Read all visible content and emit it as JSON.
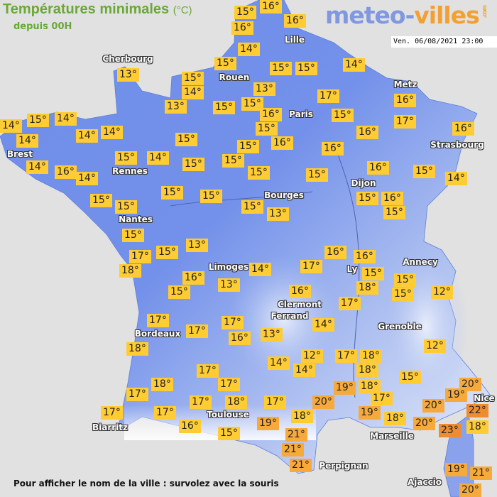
{
  "header": {
    "title": "Températures minimales",
    "unit": "(°C)",
    "subtitle": "depuis 00H",
    "datetime": "Ven. 06/08/2021 23:00"
  },
  "logo": {
    "part1": "meteo-",
    "part2": "villes",
    "suffix": ".com"
  },
  "colors": {
    "land_dark": "#6f8ee8",
    "land_light": "#dfe6f7",
    "sea": "#e1e1e1",
    "temp_mild": "#ffcc33",
    "temp_warm": "#f7aa3c",
    "temp_hot": "#f08c30",
    "title": "#6aa83a"
  },
  "cities": [
    "Lille",
    "Cherbourg",
    "Rouen",
    "Paris",
    "Metz",
    "Brest",
    "Rennes",
    "Strasbourg",
    "Dijon",
    "Bourges",
    "Nantes",
    "Limoges",
    "Annecy",
    "Ly",
    "Clermont",
    "Ferrand",
    "Bordeaux",
    "Grenoble",
    "Toulouse",
    "Biarritz",
    "Marseille",
    "Nice",
    "Perpignan",
    "Ajaccio"
  ],
  "temperatures": [
    "15°",
    "16°",
    "16°",
    "16°",
    "14°",
    "15°",
    "15°",
    "15°",
    "14°",
    "13°",
    "15°",
    "14°",
    "13°",
    "13°",
    "15°",
    "15°",
    "17°",
    "16°",
    "15°",
    "15°",
    "16°",
    "17°",
    "16°",
    "16°",
    "16°",
    "16°",
    "14°",
    "15°",
    "14°",
    "14°",
    "14°",
    "14°",
    "14°",
    "16°",
    "14°",
    "15°",
    "14°",
    "15°",
    "15°",
    "15°",
    "15°",
    "15°",
    "15°",
    "15°",
    "15°",
    "15°",
    "15°",
    "15°",
    "13°",
    "16°",
    "15°",
    "16°",
    "14°",
    "15°",
    "15°",
    "15°",
    "17°",
    "15°",
    "13°",
    "18°",
    "16°",
    "15°",
    "13°",
    "17°",
    "17°",
    "18°",
    "17°",
    "16°",
    "17°",
    "17°",
    "18°",
    "17°",
    "17°",
    "18°",
    "17°",
    "17°",
    "16°",
    "15°",
    "14°",
    "16°",
    "16°",
    "17°",
    "15°",
    "18°",
    "16°",
    "15°",
    "15°",
    "12°",
    "17°",
    "14°",
    "13°",
    "12°",
    "12°",
    "17°",
    "18°",
    "14°",
    "14°",
    "18°",
    "18°",
    "19°",
    "15°",
    "17°",
    "19°",
    "18°",
    "20°",
    "17°",
    "18°",
    "19°",
    "21°",
    "21°",
    "21°",
    "20°",
    "20°",
    "23°",
    "20°",
    "19°",
    "22°",
    "18°",
    "19°",
    "21°",
    "20°"
  ],
  "footer": "Pour afficher le nom de la ville : survolez avec la souris"
}
